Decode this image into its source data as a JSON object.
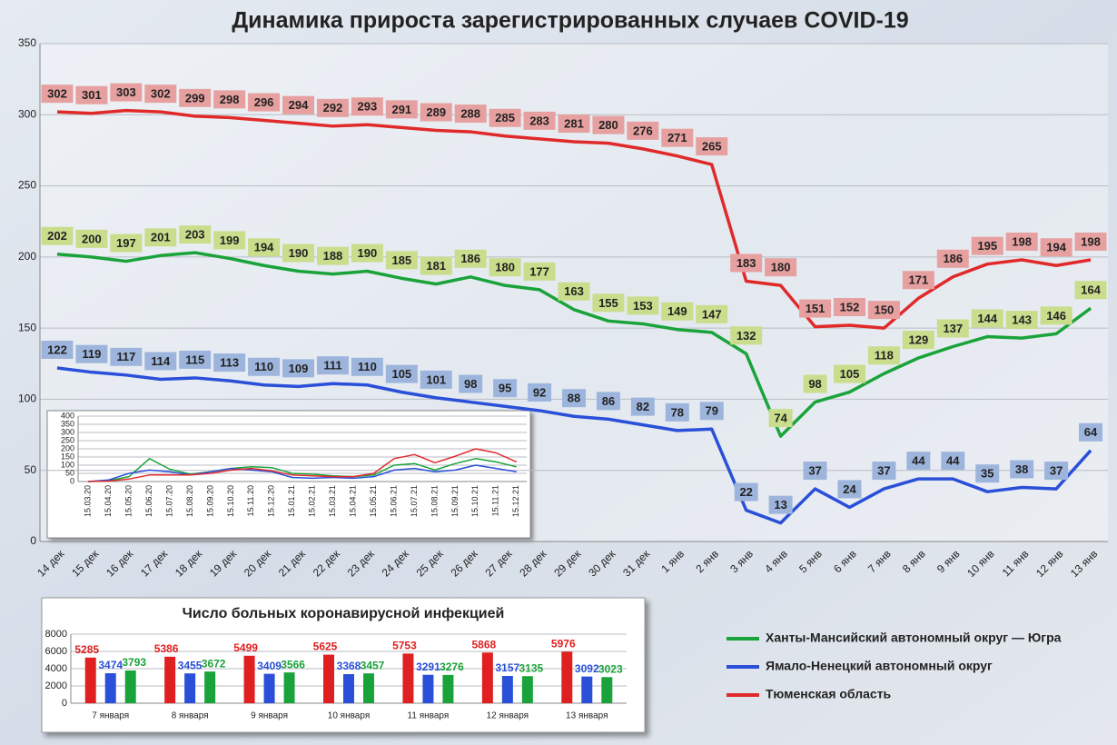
{
  "chart_data": [
    {
      "type": "line",
      "title": "Динамика прироста зарегистрированных случаев COVID-19",
      "categories": [
        "14 дек",
        "15 дек",
        "16 дек",
        "17 дек",
        "18 дек",
        "19 дек",
        "20 дек",
        "21 дек",
        "22 дек",
        "23 дек",
        "24 дек",
        "25 дек",
        "26 дек",
        "27 дек",
        "28 дек",
        "29 дек",
        "30 дек",
        "31 дек",
        "1 янв",
        "2 янв",
        "3 янв",
        "4 янв",
        "5 янв",
        "6 янв",
        "7 янв",
        "8 янв",
        "9 янв",
        "10 янв",
        "11 янв",
        "12 янв",
        "13 янв"
      ],
      "series": [
        {
          "name": "Ханты-Мансийский автономный округ — Югра",
          "color": "#1aa33a",
          "label_color": "#c9dd8c",
          "values": [
            202,
            200,
            197,
            201,
            203,
            199,
            194,
            190,
            188,
            190,
            185,
            181,
            186,
            180,
            177,
            163,
            155,
            153,
            149,
            147,
            132,
            74,
            98,
            105,
            118,
            129,
            137,
            144,
            143,
            146,
            164
          ]
        },
        {
          "name": "Ямало-Ненецкий автономный округ",
          "color": "#2a4fd8",
          "label_color": "#9db5dc",
          "values": [
            122,
            119,
            117,
            114,
            115,
            113,
            110,
            109,
            111,
            110,
            105,
            101,
            98,
            95,
            92,
            88,
            86,
            82,
            78,
            79,
            22,
            13,
            37,
            24,
            37,
            44,
            44,
            35,
            38,
            37,
            64
          ]
        },
        {
          "name": "Тюменская область",
          "color": "#e02a2a",
          "label_color": "#e7a0a0",
          "values": [
            302,
            301,
            303,
            302,
            299,
            298,
            296,
            294,
            292,
            293,
            291,
            289,
            288,
            285,
            283,
            281,
            280,
            276,
            271,
            265,
            183,
            180,
            151,
            152,
            150,
            171,
            186,
            195,
            198,
            194,
            198
          ]
        }
      ],
      "ylim": [
        0,
        350
      ],
      "yticks": [
        0,
        50,
        100,
        150,
        200,
        250,
        300,
        350
      ],
      "grid": true,
      "data_labels": true,
      "legend": "bottom-right"
    },
    {
      "type": "line",
      "categories": [
        "15.03.20",
        "15.04.20",
        "15.05.20",
        "15.06.20",
        "15.07.20",
        "15.08.20",
        "15.09.20",
        "15.10.20",
        "15.11.20",
        "15.12.20",
        "15.01.21",
        "15.02.21",
        "15.03.21",
        "15.04.21",
        "15.05.21",
        "15.06.21",
        "15.07.21",
        "15.08.21",
        "15.09.21",
        "15.10.21",
        "15.11.21",
        "15.12.21"
      ],
      "series": [
        {
          "color": "#1aa33a",
          "values": [
            0,
            5,
            30,
            140,
            75,
            45,
            60,
            80,
            90,
            85,
            50,
            45,
            35,
            30,
            40,
            100,
            110,
            70,
            110,
            140,
            120,
            90
          ]
        },
        {
          "color": "#2a4fd8",
          "values": [
            0,
            10,
            50,
            70,
            60,
            40,
            60,
            80,
            70,
            60,
            25,
            20,
            25,
            20,
            30,
            70,
            80,
            60,
            70,
            100,
            80,
            60
          ]
        },
        {
          "color": "#e02a2a",
          "values": [
            0,
            3,
            15,
            40,
            40,
            40,
            50,
            70,
            80,
            65,
            40,
            35,
            30,
            30,
            50,
            140,
            165,
            115,
            155,
            200,
            175,
            120
          ]
        }
      ],
      "ylim": [
        0,
        400
      ],
      "yticks": [
        0,
        50,
        100,
        150,
        200,
        250,
        300,
        350,
        400
      ],
      "grid": true,
      "data_labels": false
    },
    {
      "type": "bar",
      "title": "Число больных коронавирусной инфекцией",
      "categories": [
        "7 января",
        "8 января",
        "9 января",
        "10 января",
        "11 января",
        "12 января",
        "13 января"
      ],
      "series": [
        {
          "color": "#e02020",
          "values": [
            5285,
            5386,
            5499,
            5625,
            5753,
            5868,
            5976
          ]
        },
        {
          "color": "#2a4fd8",
          "values": [
            3474,
            3455,
            3409,
            3368,
            3291,
            3157,
            3092
          ]
        },
        {
          "color": "#1aa33a",
          "values": [
            3793,
            3672,
            3566,
            3457,
            3276,
            3135,
            3023
          ]
        }
      ],
      "ylim": [
        0,
        8000
      ],
      "yticks": [
        0,
        2000,
        4000,
        6000,
        8000
      ],
      "grid": true,
      "data_labels": true
    }
  ]
}
